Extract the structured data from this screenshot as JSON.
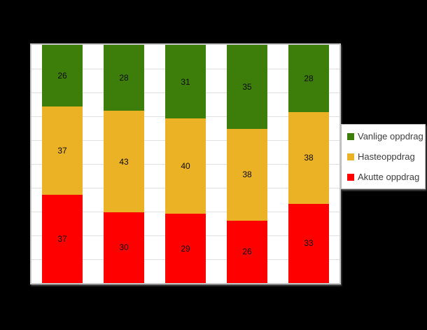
{
  "page": {
    "background_color": "#000000",
    "plot_background_color": "#FFFFFF",
    "plot_border_color": "#C6C6C6",
    "gridline_color": "#E0E0E0"
  },
  "chart_data": {
    "type": "bar",
    "subtype": "stacked-column-percent",
    "orientation": "vertical",
    "bar_count": 5,
    "series": [
      {
        "name": "Vanlige oppdrag",
        "color": "#3D7E0A",
        "values": [
          26,
          28,
          31,
          35,
          28
        ]
      },
      {
        "name": "Hasteoppdrag",
        "color": "#EBB225",
        "values": [
          37,
          43,
          40,
          38,
          38
        ]
      },
      {
        "name": "Akutte oppdrag",
        "color": "#FF0000",
        "values": [
          37,
          30,
          29,
          26,
          33
        ]
      }
    ],
    "stack_order_top_to_bottom": [
      "Vanlige oppdrag",
      "Hasteoppdrag",
      "Akutte oppdrag"
    ],
    "data_labels_shown": true,
    "data_label_color": "#0A0A0A",
    "ylim": [
      0,
      100
    ],
    "gridlines": {
      "horizontal": true,
      "interval_percent": 10
    },
    "x_axis_labels_shown": false,
    "y_axis_labels_shown": false,
    "legend": {
      "position": "right",
      "items": [
        {
          "label": "Vanlige oppdrag",
          "color": "#3D7E0A"
        },
        {
          "label": "Hasteoppdrag",
          "color": "#EBB225"
        },
        {
          "label": "Akutte oppdrag",
          "color": "#FF0000"
        }
      ]
    }
  }
}
